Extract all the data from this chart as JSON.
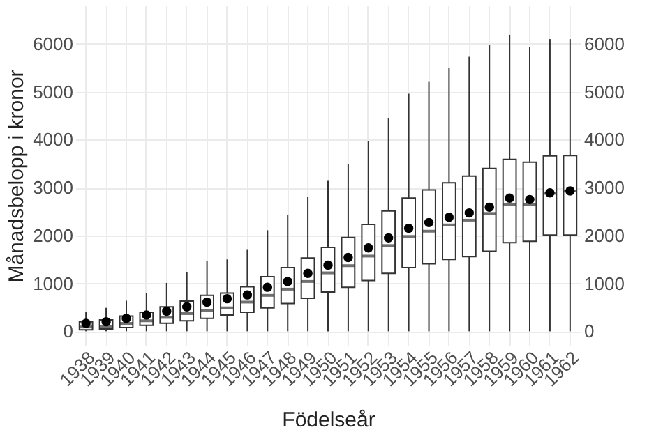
{
  "chart_data": {
    "type": "box",
    "xlabel": "Födelseår",
    "ylabel": "Månadsbelopp i kronor",
    "categories": [
      "1938",
      "1939",
      "1940",
      "1941",
      "1942",
      "1943",
      "1944",
      "1945",
      "1946",
      "1947",
      "1948",
      "1949",
      "1950",
      "1951",
      "1952",
      "1953",
      "1954",
      "1955",
      "1956",
      "1957",
      "1958",
      "1959",
      "1960",
      "1961",
      "1962"
    ],
    "boxes": [
      {
        "low": 0,
        "q1": 30,
        "median": 90,
        "q3": 200,
        "high": 400,
        "mean": 165
      },
      {
        "low": 0,
        "q1": 50,
        "median": 105,
        "q3": 240,
        "high": 490,
        "mean": 200
      },
      {
        "low": 0,
        "q1": 80,
        "median": 165,
        "q3": 320,
        "high": 640,
        "mean": 270
      },
      {
        "low": 0,
        "q1": 125,
        "median": 220,
        "q3": 400,
        "high": 800,
        "mean": 340
      },
      {
        "low": 0,
        "q1": 170,
        "median": 290,
        "q3": 510,
        "high": 1010,
        "mean": 420
      },
      {
        "low": 0,
        "q1": 220,
        "median": 370,
        "q3": 630,
        "high": 1240,
        "mean": 510
      },
      {
        "low": 0,
        "q1": 270,
        "median": 440,
        "q3": 750,
        "high": 1460,
        "mean": 610
      },
      {
        "low": 0,
        "q1": 340,
        "median": 490,
        "q3": 800,
        "high": 1500,
        "mean": 680
      },
      {
        "low": 0,
        "q1": 400,
        "median": 610,
        "q3": 930,
        "high": 1700,
        "mean": 760
      },
      {
        "low": 0,
        "q1": 490,
        "median": 750,
        "q3": 1140,
        "high": 2110,
        "mean": 920
      },
      {
        "low": 0,
        "q1": 580,
        "median": 880,
        "q3": 1330,
        "high": 2430,
        "mean": 1040
      },
      {
        "low": 0,
        "q1": 690,
        "median": 1040,
        "q3": 1530,
        "high": 2800,
        "mean": 1210
      },
      {
        "low": 0,
        "q1": 820,
        "median": 1220,
        "q3": 1750,
        "high": 3140,
        "mean": 1380
      },
      {
        "low": 0,
        "q1": 920,
        "median": 1370,
        "q3": 1960,
        "high": 3490,
        "mean": 1540
      },
      {
        "low": 0,
        "q1": 1060,
        "median": 1570,
        "q3": 2230,
        "high": 3970,
        "mean": 1740
      },
      {
        "low": 0,
        "q1": 1210,
        "median": 1790,
        "q3": 2510,
        "high": 4450,
        "mean": 1950
      },
      {
        "low": 0,
        "q1": 1330,
        "median": 1980,
        "q3": 2780,
        "high": 4960,
        "mean": 2150
      },
      {
        "low": 0,
        "q1": 1410,
        "median": 2090,
        "q3": 2950,
        "high": 5220,
        "mean": 2270
      },
      {
        "low": 0,
        "q1": 1500,
        "median": 2220,
        "q3": 3100,
        "high": 5490,
        "mean": 2380
      },
      {
        "low": 0,
        "q1": 1560,
        "median": 2320,
        "q3": 3240,
        "high": 5730,
        "mean": 2470
      },
      {
        "low": 0,
        "q1": 1670,
        "median": 2460,
        "q3": 3400,
        "high": 5970,
        "mean": 2590
      },
      {
        "low": 0,
        "q1": 1850,
        "median": 2640,
        "q3": 3590,
        "high": 6190,
        "mean": 2780
      },
      {
        "low": 0,
        "q1": 1880,
        "median": 2640,
        "q3": 3530,
        "high": 5940,
        "mean": 2750
      },
      {
        "low": 0,
        "q1": 2010,
        "median": 2880,
        "q3": 3660,
        "high": 6100,
        "mean": 2890
      },
      {
        "low": 0,
        "q1": 2010,
        "median": 2930,
        "q3": 3670,
        "high": 6100,
        "mean": 2930
      }
    ],
    "ylim": [
      -300,
      6800
    ],
    "yticks": [
      0,
      1000,
      2000,
      3000,
      4000,
      5000,
      6000
    ],
    "y2lim": [
      -300,
      6800
    ],
    "y2ticks": [
      0,
      1000,
      2000,
      3000,
      4000,
      5000,
      6000
    ],
    "grid": true
  }
}
